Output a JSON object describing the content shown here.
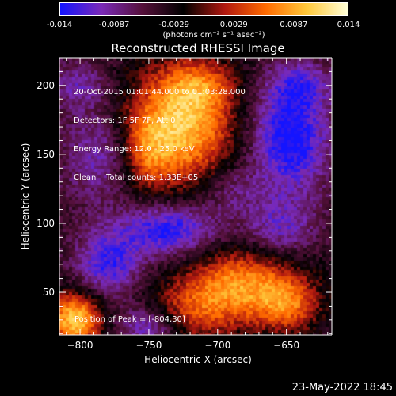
{
  "colorbar": {
    "ticks": [
      "-0.014",
      "-0.0087",
      "-0.0029",
      "0.0029",
      "0.0087",
      "0.014"
    ],
    "tick_values": [
      -0.014,
      -0.0087,
      -0.0029,
      0.0029,
      0.0087,
      0.014
    ],
    "unit_label": "(photons cm⁻² s⁻¹ asec⁻²)",
    "stops": [
      "#1414ff",
      "#7a2ab8",
      "#55103a",
      "#000000",
      "#b01810",
      "#ff6a00",
      "#ffc83a",
      "#ffffd8"
    ]
  },
  "chart_data": {
    "type": "heatmap",
    "title": "Reconstructed RHESSI Image",
    "xlabel": "Heliocentric X (arcsec)",
    "ylabel": "Heliocentric Y (arcsec)",
    "xlim": [
      -815,
      -617
    ],
    "ylim": [
      19,
      220
    ],
    "xticks": [
      -800,
      -750,
      -700,
      -650
    ],
    "yticks": [
      50,
      100,
      150,
      200
    ],
    "zlim": [
      -0.014,
      0.014
    ],
    "info_lines": [
      "20-Oct-2015 01:01:44.000 to 01:03:28.000",
      "Detectors: 1F 5F 7F, Att 0",
      "Energy Range: 12.0 - 25.0 keV",
      "Clean    Total counts: 1.33E+05"
    ],
    "peak_label": "Position of Peak = [-804,30]",
    "peak": [
      -804,
      30
    ],
    "sources": [
      {
        "x": -728,
        "y": 170,
        "sx": 28,
        "sy": 30,
        "amp": 0.0145
      },
      {
        "x": -712,
        "y": 200,
        "sx": 18,
        "sy": 14,
        "amp": 0.006
      },
      {
        "x": -752,
        "y": 150,
        "sx": 12,
        "sy": 18,
        "amp": 0.005
      },
      {
        "x": -682,
        "y": 55,
        "sx": 30,
        "sy": 20,
        "amp": 0.012
      },
      {
        "x": -720,
        "y": 35,
        "sx": 22,
        "sy": 16,
        "amp": 0.006
      },
      {
        "x": -648,
        "y": 40,
        "sx": 16,
        "sy": 14,
        "amp": 0.0075
      },
      {
        "x": -804,
        "y": 30,
        "sx": 14,
        "sy": 14,
        "amp": 0.015
      },
      {
        "x": -648,
        "y": 162,
        "sx": 20,
        "sy": 28,
        "amp": -0.0105
      },
      {
        "x": -785,
        "y": 150,
        "sx": 18,
        "sy": 24,
        "amp": -0.006
      },
      {
        "x": -735,
        "y": 95,
        "sx": 26,
        "sy": 14,
        "amp": -0.0095
      },
      {
        "x": -655,
        "y": 95,
        "sx": 18,
        "sy": 16,
        "amp": -0.006
      },
      {
        "x": -780,
        "y": 70,
        "sx": 16,
        "sy": 16,
        "amp": -0.008
      },
      {
        "x": -640,
        "y": 200,
        "sx": 16,
        "sy": 12,
        "amp": -0.005
      },
      {
        "x": -800,
        "y": 200,
        "sx": 14,
        "sy": 12,
        "amp": -0.005
      },
      {
        "x": -750,
        "y": 25,
        "sx": 16,
        "sy": 10,
        "amp": -0.007
      },
      {
        "x": -690,
        "y": 125,
        "sx": 14,
        "sy": 12,
        "amp": -0.004
      }
    ],
    "background": -0.0045
  },
  "footer": {
    "date": "23-May-2022 18:45"
  }
}
